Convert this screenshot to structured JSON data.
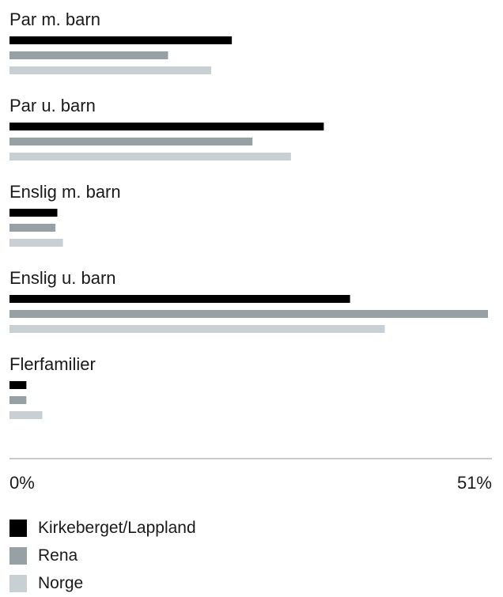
{
  "chart_data": {
    "type": "bar",
    "orientation": "horizontal",
    "categories": [
      "Par m. barn",
      "Par u. barn",
      "Enslig m. barn",
      "Enslig u. barn",
      "Flerfamilier"
    ],
    "series": [
      {
        "name": "Kirkeberget/Lappland",
        "color": "#000000",
        "values": [
          23.7,
          33.5,
          5.1,
          36.3,
          1.8
        ]
      },
      {
        "name": "Rena",
        "color": "#96a0a5",
        "values": [
          16.9,
          25.9,
          4.9,
          51.0,
          1.8
        ]
      },
      {
        "name": "Norge",
        "color": "#c8d0d4",
        "values": [
          21.5,
          30.0,
          5.7,
          40.0,
          3.5
        ]
      }
    ],
    "xlim": [
      0,
      51
    ],
    "tick_labels": {
      "min": "0%",
      "max": "51%"
    },
    "legend_position": "bottom-left",
    "grid": false
  }
}
